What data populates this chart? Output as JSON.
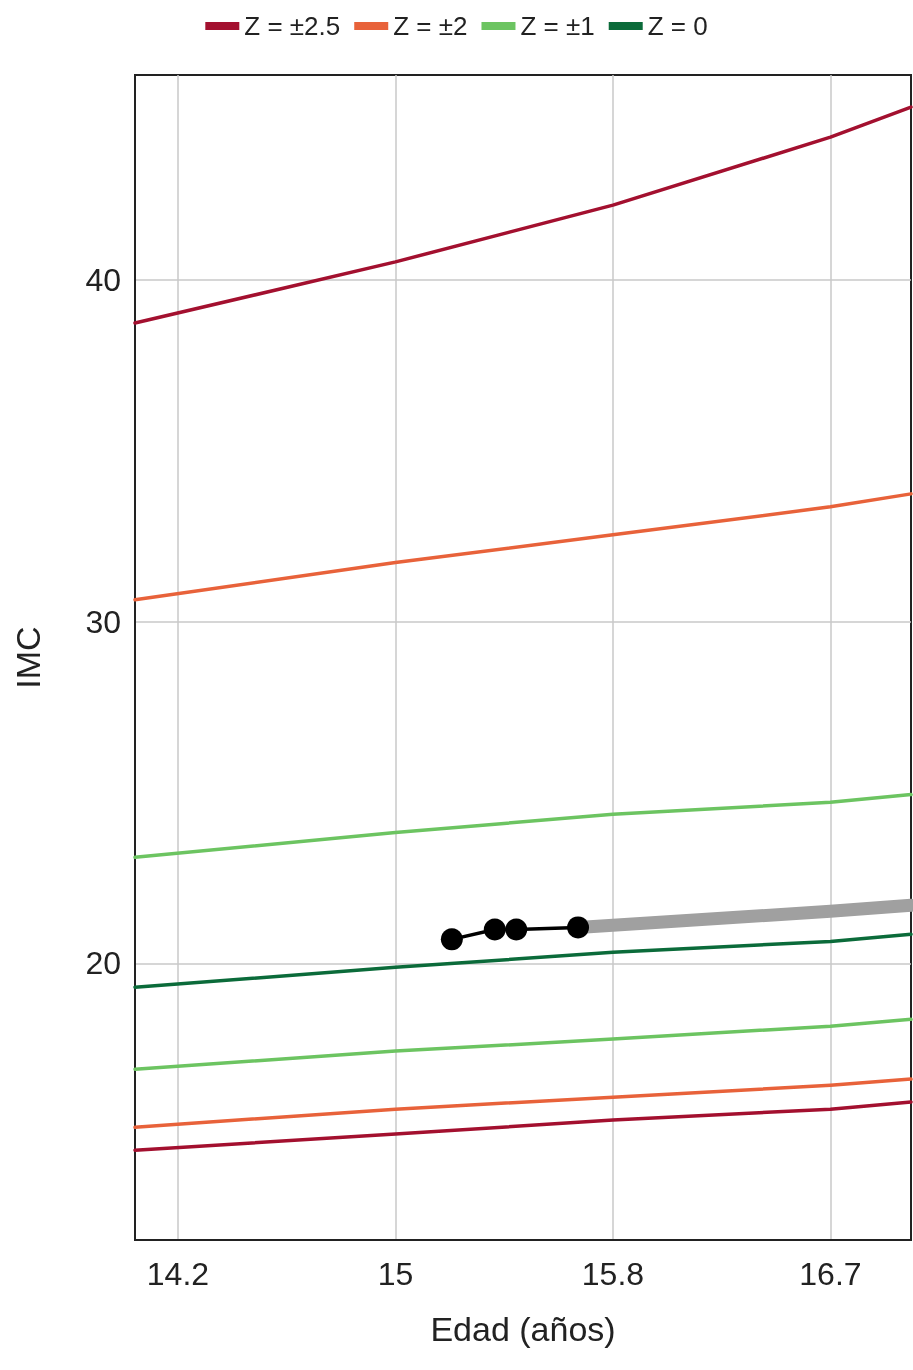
{
  "chart_data": {
    "type": "line",
    "xlabel": "Edad (años)",
    "ylabel": "IMC",
    "x": [
      14.06,
      15.03,
      15.84,
      16.65,
      16.95
    ],
    "series": [
      {
        "name": "Z = ±2.5",
        "color": "#a3102f",
        "values": [
          38.74,
          40.53,
          42.19,
          44.18,
          45.06
        ]
      },
      {
        "name": "Z = ±2",
        "color": "#e8623a",
        "values": [
          30.64,
          31.73,
          32.54,
          33.36,
          33.74
        ]
      },
      {
        "name": "Z = ±1",
        "color": "#6cc461",
        "values": [
          23.1,
          23.83,
          24.36,
          24.71,
          24.94
        ]
      },
      {
        "name": "Z = 0",
        "color": "#0b6b3a",
        "values": [
          19.3,
          19.88,
          20.32,
          20.64,
          20.85
        ]
      },
      {
        "color": "#6cc461",
        "values": [
          16.9,
          17.43,
          17.78,
          18.16,
          18.36
        ]
      },
      {
        "color": "#e8623a",
        "values": [
          15.2,
          15.73,
          16.08,
          16.43,
          16.61
        ]
      },
      {
        "color": "#a3102f",
        "values": [
          14.53,
          15.0,
          15.41,
          15.73,
          15.94
        ]
      },
      {
        "color": "#a0a0a0",
        "x": [
          15.71,
          16.65,
          16.95
        ],
        "values": [
          21.05,
          21.52,
          21.7
        ]
      },
      {
        "color": "#000000",
        "marker": "circle",
        "x": [
          15.24,
          15.4,
          15.48,
          15.71
        ],
        "values": [
          20.7,
          20.99,
          20.99,
          21.05
        ]
      }
    ],
    "xlim": [
      14.06,
      16.95
    ],
    "ylim": [
      11.9,
      46
    ],
    "xticks": [
      {
        "value": 14.22,
        "label": "14.2"
      },
      {
        "value": 15.03,
        "label": "15"
      },
      {
        "value": 15.84,
        "label": "15.8"
      },
      {
        "value": 16.65,
        "label": "16.7"
      }
    ],
    "yticks": [
      20,
      30,
      40
    ],
    "grid": true,
    "legend": "top",
    "marker": "none",
    "line_style": "solid"
  }
}
